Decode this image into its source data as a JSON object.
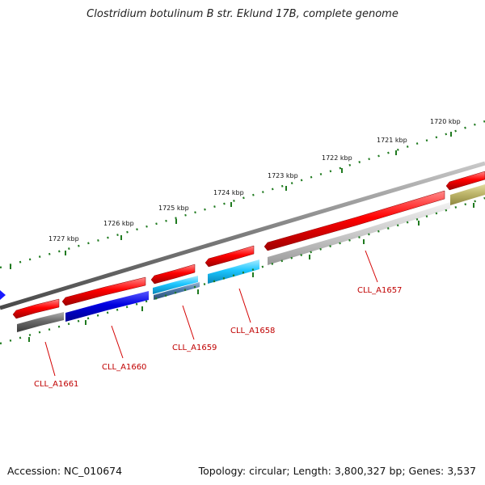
{
  "title": "Clostridium botulinum B str. Eklund 17B, complete genome",
  "footer": {
    "accession": "Accession: NC_010674",
    "summary": "Topology: circular; Length: 3,800,327 bp; Genes: 3,537"
  },
  "colors": {
    "forward_strand": "#e80000",
    "backbone": "#808080",
    "ticks": "#1f7a1f",
    "label": "#c00000"
  },
  "kbp_labels": [
    "1720 kbp",
    "1721 kbp",
    "1722 kbp",
    "1723 kbp",
    "1724 kbp",
    "1725 kbp",
    "1726 kbp",
    "1727 kbp"
  ],
  "gene_labels": [
    "CLL_A1657",
    "CLL_A1658",
    "CLL_A1659",
    "CLL_A1660",
    "CLL_A1661"
  ]
}
